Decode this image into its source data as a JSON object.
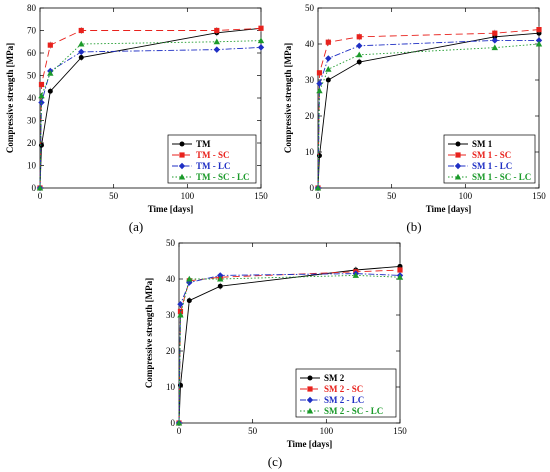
{
  "figure": {
    "panels": [
      "(a)",
      "(b)",
      "(c)"
    ]
  },
  "chart_data": [
    {
      "type": "line",
      "panel_label": "(a)",
      "xlabel": "Time [days]",
      "ylabel": "Compressive strength [MPa]",
      "xlim": [
        0,
        150
      ],
      "ylim": [
        0,
        80
      ],
      "xticks": [
        0,
        50,
        100,
        150
      ],
      "yticks": [
        0,
        10,
        20,
        30,
        40,
        50,
        60,
        70,
        80
      ],
      "legend_position": "bottom-right",
      "x": [
        0,
        1,
        7,
        28,
        120,
        150
      ],
      "series": [
        {
          "name": "TM",
          "color": "#000000",
          "dash": "",
          "marker": "circle",
          "values": [
            0,
            19,
            43,
            58,
            69,
            71
          ]
        },
        {
          "name": "TM - SC",
          "color": "#e8221d",
          "dash": "7,4",
          "marker": "square",
          "values": [
            0,
            46,
            63.5,
            70,
            70,
            71
          ]
        },
        {
          "name": "TM - LC",
          "color": "#1f2fc4",
          "dash": "6,2,1.5,2",
          "marker": "diamond",
          "values": [
            0,
            38,
            52,
            60.5,
            61.5,
            62.5
          ]
        },
        {
          "name": "TM - SC - LC",
          "color": "#1b9a2a",
          "dash": "1.5,2",
          "marker": "triangle",
          "values": [
            0,
            41,
            51,
            64,
            65,
            65.5
          ]
        }
      ]
    },
    {
      "type": "line",
      "panel_label": "(b)",
      "xlabel": "Time [days]",
      "ylabel": "Compressive strength [MPa]",
      "xlim": [
        0,
        150
      ],
      "ylim": [
        0,
        50
      ],
      "xticks": [
        0,
        50,
        100,
        150
      ],
      "yticks": [
        0,
        10,
        20,
        30,
        40,
        50
      ],
      "legend_position": "bottom-right",
      "x": [
        0,
        1,
        7,
        28,
        120,
        150
      ],
      "series": [
        {
          "name": "SM 1",
          "color": "#000000",
          "dash": "",
          "marker": "circle",
          "values": [
            0,
            9,
            30,
            35,
            42,
            43
          ]
        },
        {
          "name": "SM 1 - SC",
          "color": "#e8221d",
          "dash": "7,4",
          "marker": "square",
          "values": [
            0,
            32,
            40.5,
            42,
            43,
            44
          ]
        },
        {
          "name": "SM 1 - LC",
          "color": "#1f2fc4",
          "dash": "6,2,1.5,2",
          "marker": "diamond",
          "values": [
            0,
            29,
            36,
            39.5,
            41,
            41
          ]
        },
        {
          "name": "SM 1 - SC - LC",
          "color": "#1b9a2a",
          "dash": "1.5,2",
          "marker": "triangle",
          "values": [
            0,
            27,
            33,
            37,
            39,
            40
          ]
        }
      ]
    },
    {
      "type": "line",
      "panel_label": "(c)",
      "xlabel": "Time [days]",
      "ylabel": "Compressive strength [MPa]",
      "xlim": [
        0,
        150
      ],
      "ylim": [
        0,
        50
      ],
      "xticks": [
        0,
        50,
        100,
        150
      ],
      "yticks": [
        0,
        10,
        20,
        30,
        40,
        50
      ],
      "legend_position": "bottom-right",
      "x": [
        0,
        1,
        7,
        28,
        120,
        150
      ],
      "series": [
        {
          "name": "SM 2",
          "color": "#000000",
          "dash": "",
          "marker": "circle",
          "values": [
            0,
            10.5,
            34,
            38,
            42.5,
            43.5
          ]
        },
        {
          "name": "SM 2 - SC",
          "color": "#e8221d",
          "dash": "7,4",
          "marker": "square",
          "values": [
            0,
            31,
            39.5,
            40.5,
            42,
            42.5
          ]
        },
        {
          "name": "SM 2 - LC",
          "color": "#1f2fc4",
          "dash": "6,2,1.5,2",
          "marker": "diamond",
          "values": [
            0,
            33,
            39,
            41,
            41.5,
            41
          ]
        },
        {
          "name": "SM 2 - SC - LC",
          "color": "#1b9a2a",
          "dash": "1.5,2",
          "marker": "triangle",
          "values": [
            0,
            30,
            40,
            40,
            41,
            40.5
          ]
        }
      ]
    }
  ]
}
